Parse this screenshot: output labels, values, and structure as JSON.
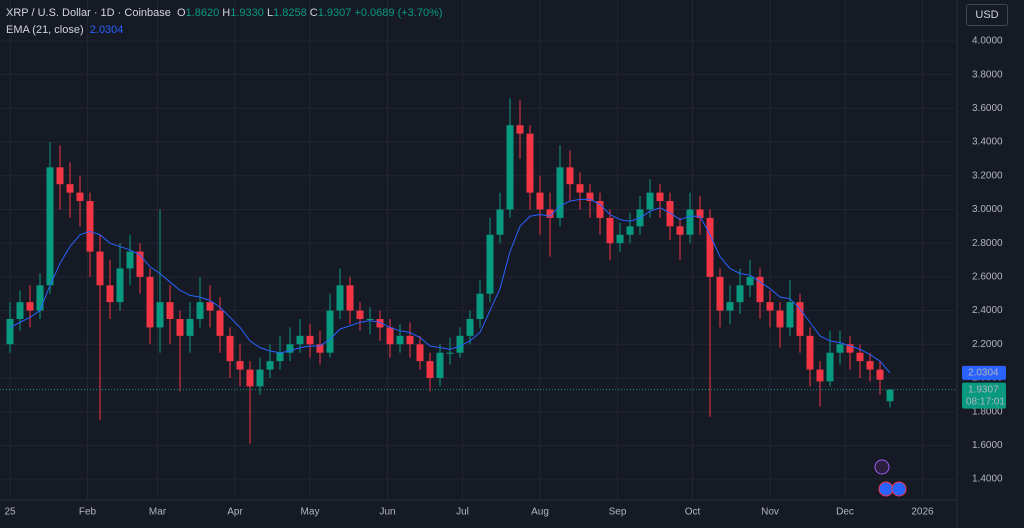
{
  "chart_data": {
    "type": "candlestick",
    "symbol": "XRP / U.S. Dollar · 1D · Coinbase",
    "ohlc_header": [
      {
        "key": "O",
        "value": "1.8620"
      },
      {
        "key": "H",
        "value": "1.9330"
      },
      {
        "key": "L",
        "value": "1.8258"
      },
      {
        "key": "C",
        "value": "1.9307"
      }
    ],
    "change": "+0.0689 (+3.70%)",
    "indicator": "EMA (21, close)",
    "indicator_value": "2.0304",
    "currency": "USD",
    "ema_axis_label": "2.0304",
    "price_axis_label": "1.9307",
    "countdown": "08:17:01",
    "up_color": "#089981",
    "down_color": "#f23645",
    "ema_color": "#2962ff",
    "grid": true,
    "xlim": [
      -4,
      378
    ],
    "ylim": [
      1.276,
      4.243
    ],
    "xticks": [
      {
        "value": 0,
        "label": "25"
      },
      {
        "value": 31,
        "label": "Feb"
      },
      {
        "value": 59,
        "label": "Mar"
      },
      {
        "value": 90,
        "label": "Apr"
      },
      {
        "value": 120,
        "label": "May"
      },
      {
        "value": 151,
        "label": "Jun"
      },
      {
        "value": 181,
        "label": "Jul"
      },
      {
        "value": 212,
        "label": "Aug"
      },
      {
        "value": 243,
        "label": "Sep"
      },
      {
        "value": 273,
        "label": "Oct"
      },
      {
        "value": 304,
        "label": "Nov"
      },
      {
        "value": 334,
        "label": "Dec"
      },
      {
        "value": 365,
        "label": "2026"
      }
    ],
    "yticks": [
      {
        "value": 1.4,
        "label": "1.4000"
      },
      {
        "value": 1.6,
        "label": "1.6000"
      },
      {
        "value": 1.8,
        "label": "1.8000"
      },
      {
        "value": 2.0,
        "label": "2.0000"
      },
      {
        "value": 2.2,
        "label": "2.2000"
      },
      {
        "value": 2.4,
        "label": "2.4000"
      },
      {
        "value": 2.6,
        "label": "2.6000"
      },
      {
        "value": 2.8,
        "label": "2.8000"
      },
      {
        "value": 3.0,
        "label": "3.0000"
      },
      {
        "value": 3.2,
        "label": "3.2000"
      },
      {
        "value": 3.4,
        "label": "3.4000"
      },
      {
        "value": 3.6,
        "label": "3.6000"
      },
      {
        "value": 3.8,
        "label": "3.8000"
      },
      {
        "value": 4.0,
        "label": "4.0000"
      }
    ],
    "x": [
      0,
      4,
      8,
      12,
      16,
      20,
      24,
      28,
      32,
      36,
      40,
      44,
      48,
      52,
      56,
      60,
      64,
      68,
      72,
      76,
      80,
      84,
      88,
      92,
      96,
      100,
      104,
      108,
      112,
      116,
      120,
      124,
      128,
      132,
      136,
      140,
      144,
      148,
      152,
      156,
      160,
      164,
      168,
      172,
      176,
      180,
      184,
      188,
      192,
      196,
      200,
      204,
      208,
      212,
      216,
      220,
      224,
      228,
      232,
      236,
      240,
      244,
      248,
      252,
      256,
      260,
      264,
      268,
      272,
      276,
      280,
      284,
      288,
      292,
      296,
      300,
      304,
      308,
      312,
      316,
      320,
      324,
      328,
      332,
      336,
      340,
      344,
      348,
      352
    ],
    "open": [
      2.2,
      2.35,
      2.45,
      2.4,
      2.55,
      3.25,
      3.15,
      3.1,
      3.05,
      2.75,
      2.55,
      2.45,
      2.65,
      2.75,
      2.6,
      2.3,
      2.45,
      2.35,
      2.25,
      2.35,
      2.45,
      2.4,
      2.25,
      2.1,
      2.05,
      1.95,
      2.05,
      2.1,
      2.15,
      2.2,
      2.25,
      2.2,
      2.15,
      2.4,
      2.55,
      2.4,
      2.35,
      2.35,
      2.3,
      2.2,
      2.25,
      2.2,
      2.1,
      2.0,
      2.15,
      2.15,
      2.25,
      2.35,
      2.5,
      2.85,
      3.0,
      3.5,
      3.45,
      3.1,
      3.0,
      2.95,
      3.25,
      3.15,
      3.1,
      3.05,
      2.95,
      2.8,
      2.85,
      2.9,
      3.0,
      3.1,
      3.05,
      2.9,
      2.85,
      3.0,
      2.95,
      2.6,
      2.4,
      2.45,
      2.55,
      2.6,
      2.45,
      2.4,
      2.3,
      2.45,
      2.25,
      2.05,
      1.98,
      2.15,
      2.2,
      2.15,
      2.1,
      2.05,
      1.862
    ],
    "high": [
      2.45,
      2.52,
      2.55,
      2.62,
      3.4,
      3.38,
      3.28,
      3.2,
      3.1,
      2.85,
      2.7,
      2.8,
      2.85,
      2.8,
      2.65,
      3.0,
      2.55,
      2.4,
      2.45,
      2.6,
      2.55,
      2.48,
      2.3,
      2.2,
      2.1,
      2.12,
      2.2,
      2.25,
      2.3,
      2.35,
      2.32,
      2.28,
      2.5,
      2.65,
      2.6,
      2.45,
      2.42,
      2.4,
      2.35,
      2.32,
      2.33,
      2.25,
      2.15,
      2.2,
      2.24,
      2.3,
      2.4,
      2.58,
      2.95,
      3.1,
      3.66,
      3.65,
      3.5,
      3.2,
      3.1,
      3.38,
      3.35,
      3.22,
      3.15,
      3.1,
      3.0,
      2.92,
      2.98,
      3.08,
      3.18,
      3.15,
      3.1,
      2.95,
      3.1,
      3.08,
      3.0,
      2.65,
      2.55,
      2.65,
      2.7,
      2.65,
      2.52,
      2.45,
      2.58,
      2.5,
      2.3,
      2.1,
      2.28,
      2.28,
      2.25,
      2.2,
      2.15,
      2.1,
      1.933
    ],
    "low": [
      2.15,
      2.28,
      2.3,
      2.35,
      2.5,
      3.0,
      2.95,
      2.9,
      2.6,
      1.75,
      2.35,
      2.4,
      2.55,
      2.5,
      2.2,
      2.15,
      2.2,
      1.92,
      2.15,
      2.3,
      2.3,
      2.15,
      2.0,
      1.95,
      1.61,
      1.9,
      2.0,
      2.05,
      2.1,
      2.15,
      2.12,
      2.08,
      2.12,
      2.35,
      2.32,
      2.28,
      2.26,
      2.22,
      2.12,
      2.15,
      2.12,
      2.05,
      1.92,
      1.95,
      2.08,
      2.12,
      2.2,
      2.3,
      2.45,
      2.8,
      2.95,
      3.3,
      3.0,
      2.85,
      2.72,
      2.9,
      3.05,
      3.0,
      2.95,
      2.85,
      2.7,
      2.75,
      2.8,
      2.85,
      2.95,
      2.95,
      2.82,
      2.7,
      2.8,
      2.85,
      1.77,
      2.3,
      2.32,
      2.38,
      2.48,
      2.35,
      2.3,
      2.18,
      2.25,
      2.15,
      1.95,
      1.83,
      1.95,
      2.08,
      2.05,
      2.0,
      1.98,
      1.9,
      1.8258
    ],
    "close": [
      2.35,
      2.45,
      2.4,
      2.55,
      3.25,
      3.15,
      3.1,
      3.05,
      2.75,
      2.55,
      2.45,
      2.65,
      2.75,
      2.6,
      2.3,
      2.45,
      2.35,
      2.25,
      2.35,
      2.45,
      2.4,
      2.25,
      2.1,
      2.05,
      1.95,
      2.05,
      2.1,
      2.15,
      2.2,
      2.25,
      2.2,
      2.15,
      2.4,
      2.55,
      2.4,
      2.35,
      2.35,
      2.3,
      2.2,
      2.25,
      2.2,
      2.1,
      2.0,
      2.15,
      2.15,
      2.25,
      2.35,
      2.5,
      2.85,
      3.0,
      3.5,
      3.45,
      3.1,
      3.0,
      2.95,
      3.25,
      3.15,
      3.1,
      3.05,
      2.95,
      2.8,
      2.85,
      2.9,
      3.0,
      3.1,
      3.05,
      2.9,
      2.85,
      3.0,
      2.95,
      2.6,
      2.4,
      2.45,
      2.55,
      2.6,
      2.45,
      2.4,
      2.3,
      2.45,
      2.25,
      2.05,
      1.98,
      2.15,
      2.2,
      2.15,
      2.1,
      2.05,
      1.99,
      1.9307
    ],
    "ema": [
      2.3,
      2.33,
      2.36,
      2.4,
      2.55,
      2.68,
      2.78,
      2.85,
      2.87,
      2.85,
      2.8,
      2.78,
      2.76,
      2.73,
      2.66,
      2.62,
      2.57,
      2.52,
      2.49,
      2.48,
      2.46,
      2.42,
      2.36,
      2.3,
      2.22,
      2.18,
      2.16,
      2.15,
      2.16,
      2.18,
      2.19,
      2.19,
      2.23,
      2.29,
      2.31,
      2.33,
      2.34,
      2.33,
      2.3,
      2.28,
      2.27,
      2.24,
      2.19,
      2.18,
      2.17,
      2.19,
      2.22,
      2.27,
      2.4,
      2.53,
      2.75,
      2.9,
      2.96,
      2.97,
      2.96,
      3.02,
      3.05,
      3.06,
      3.06,
      3.03,
      2.97,
      2.94,
      2.93,
      2.95,
      2.99,
      3.01,
      2.98,
      2.94,
      2.96,
      2.96,
      2.85,
      2.72,
      2.65,
      2.62,
      2.61,
      2.57,
      2.53,
      2.48,
      2.47,
      2.41,
      2.33,
      2.25,
      2.22,
      2.21,
      2.19,
      2.17,
      2.14,
      2.1,
      2.0304
    ]
  }
}
